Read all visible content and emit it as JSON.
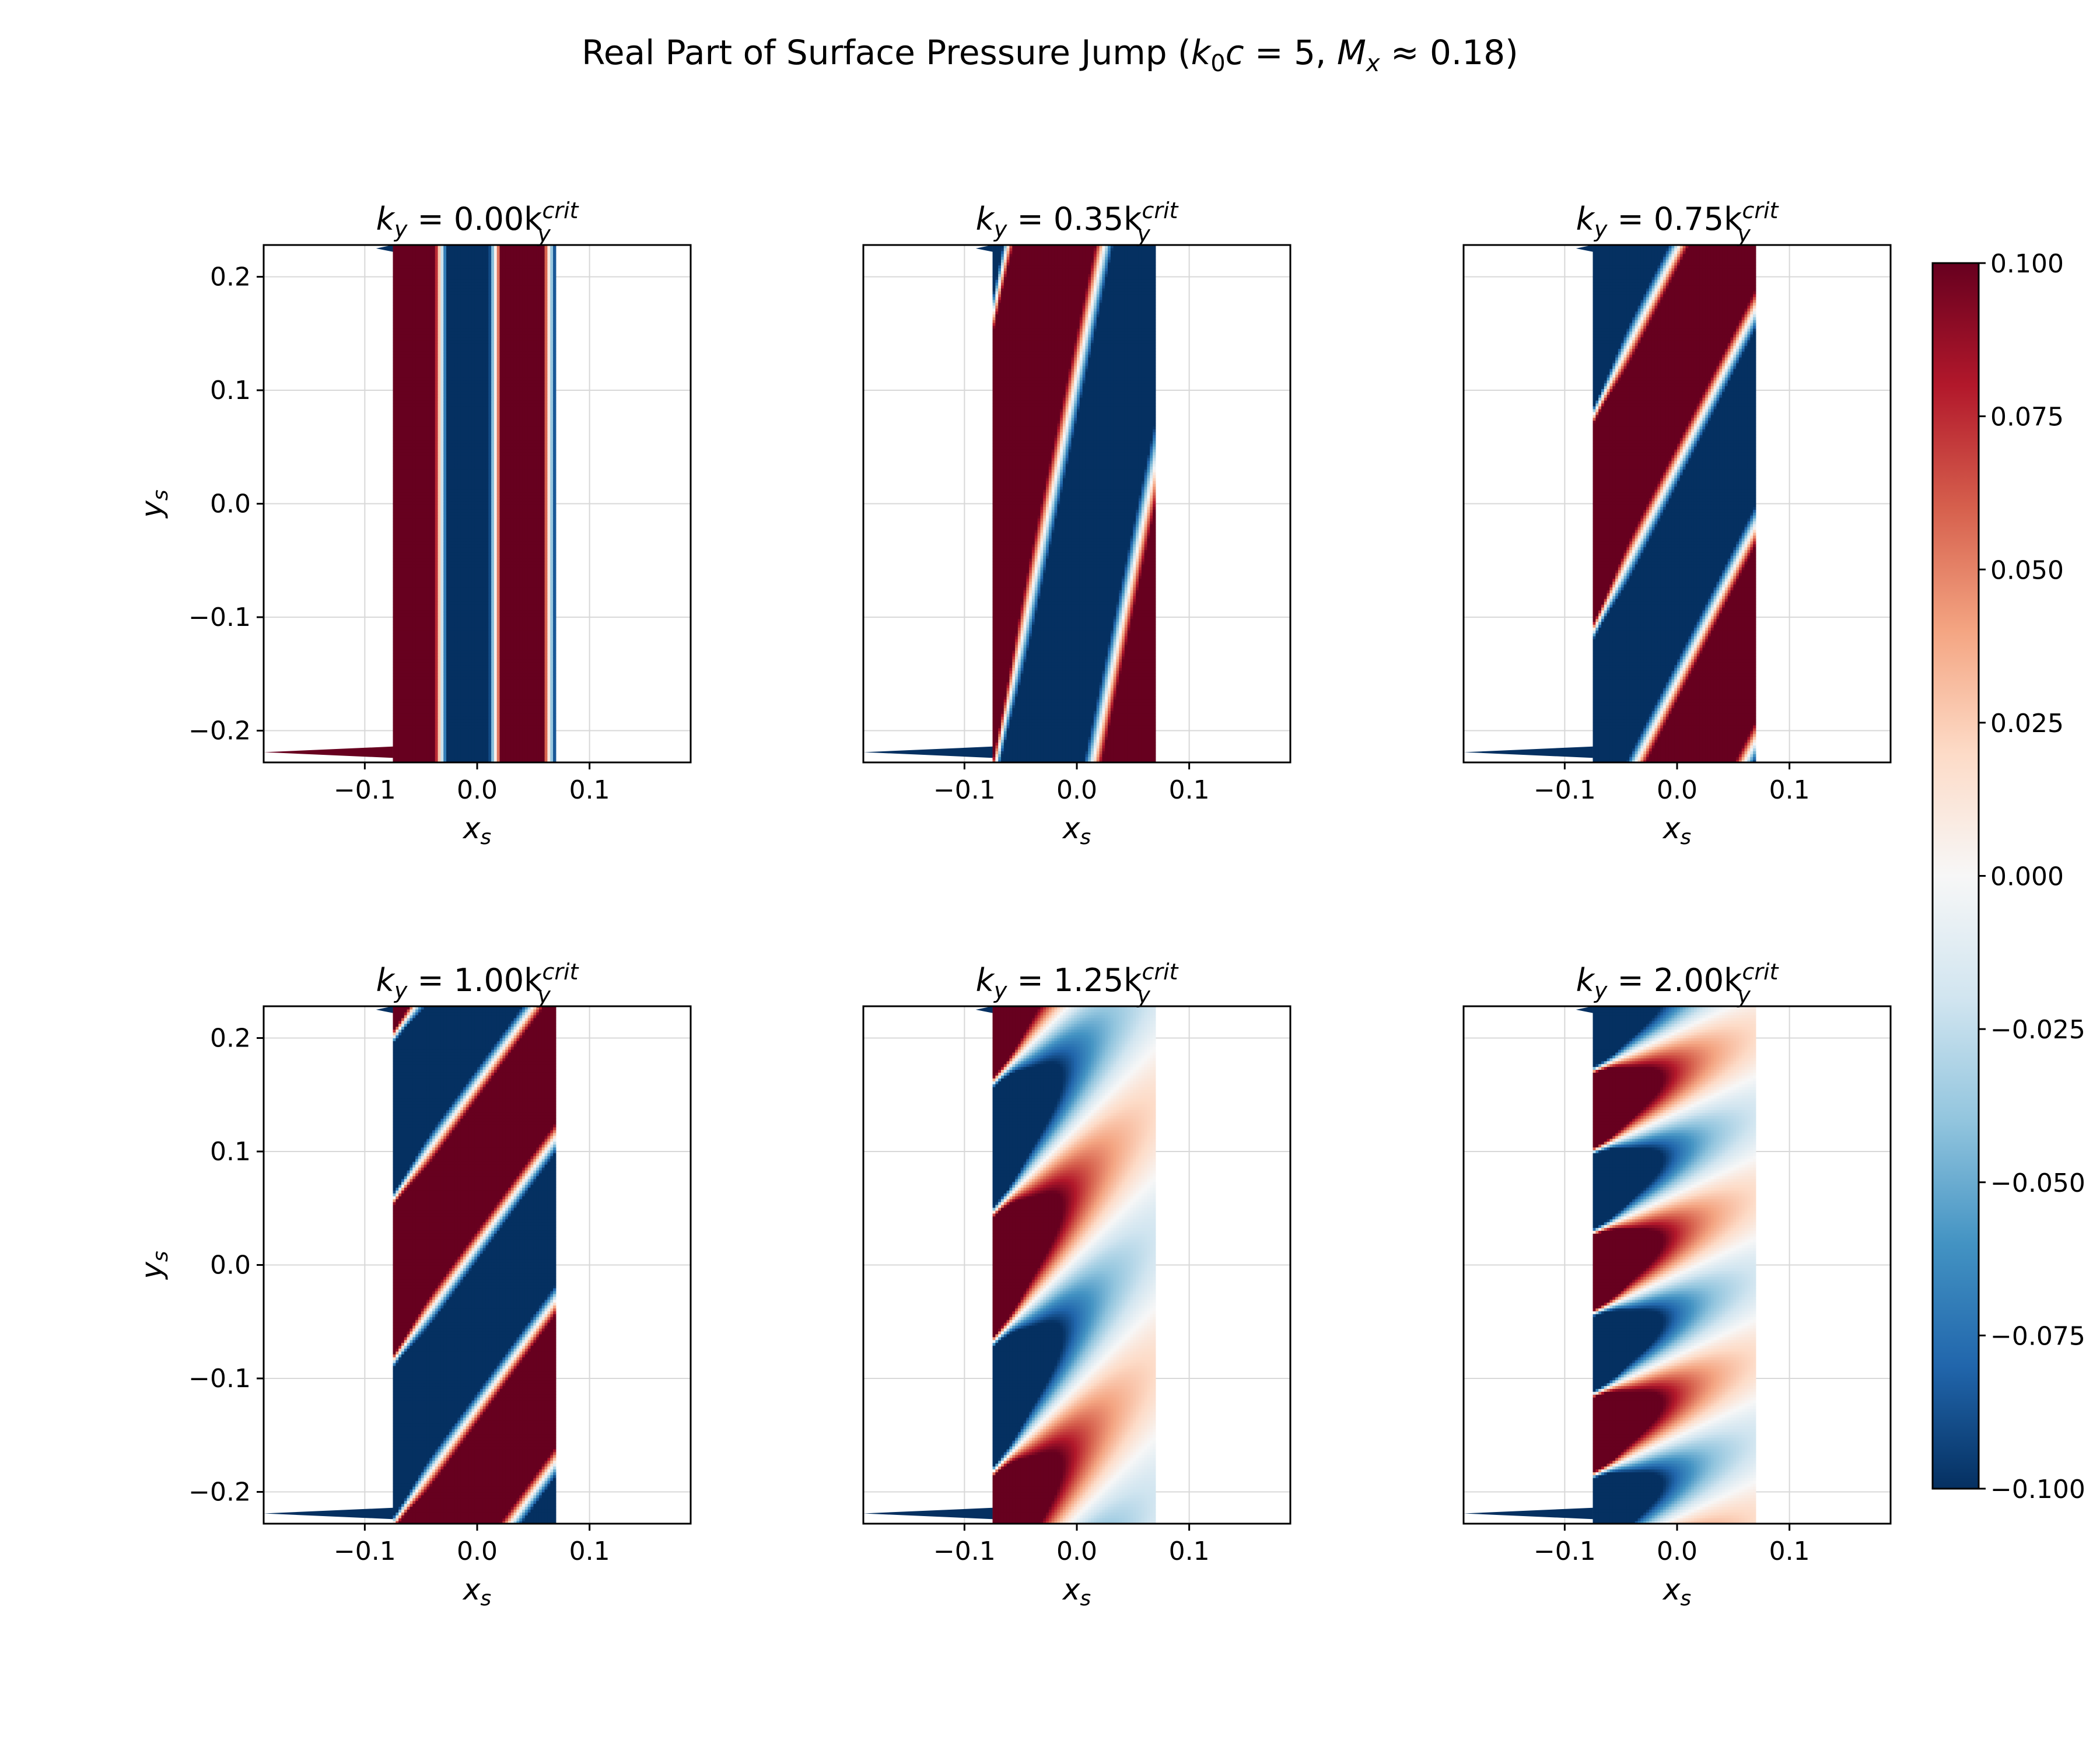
{
  "figure": {
    "title_main": "Real Part of Surface Pressure Jump (",
    "title_k": "k",
    "title_k_sub": "0",
    "title_c": "c",
    "title_eq5": " = 5, ",
    "title_M": "M",
    "title_M_sub": "x",
    "title_approx": " ≈ 0.18)"
  },
  "colorbar": {
    "vmin": -0.1,
    "vmax": 0.1,
    "ticks": [
      0.1,
      0.075,
      0.05,
      0.025,
      0.0,
      -0.025,
      -0.05,
      -0.075,
      -0.1
    ],
    "tick_labels": [
      "0.100",
      "0.075",
      "0.050",
      "0.025",
      "0.000",
      "−0.025",
      "−0.050",
      "−0.075",
      "−0.100"
    ],
    "colormap": "RdBu_r",
    "color_max": "#67001f",
    "color_mid": "#f7f7f7",
    "color_min": "#053061"
  },
  "chart_data": [
    {
      "type": "heatmap",
      "panel": "top-left",
      "title_prefix": "k",
      "title_sub": "y",
      "title_eq": " = 0.00k",
      "title_sup": "crit",
      "title_sub2": "y",
      "ky_ratio": 0.0,
      "xlim": [
        -0.19,
        0.19
      ],
      "ylim": [
        -0.228,
        0.228
      ],
      "x_ticks": [
        -0.1,
        0.0,
        0.1
      ],
      "x_tick_labels": [
        "−0.1",
        "0.0",
        "0.1"
      ],
      "y_ticks": [
        0.2,
        0.1,
        0.0,
        -0.1,
        -0.2
      ],
      "y_tick_labels": [
        "0.2",
        "0.1",
        "0.0",
        "−0.1",
        "−0.2"
      ],
      "xlabel": "x",
      "xlabel_sub": "s",
      "ylabel": "y",
      "ylabel_sub": "s",
      "grid": true
    },
    {
      "type": "heatmap",
      "panel": "top-center",
      "title_prefix": "k",
      "title_sub": "y",
      "title_eq": " = 0.35k",
      "title_sup": "crit",
      "title_sub2": "y",
      "ky_ratio": 0.35,
      "xlim": [
        -0.19,
        0.19
      ],
      "ylim": [
        -0.228,
        0.228
      ],
      "x_ticks": [
        -0.1,
        0.0,
        0.1
      ],
      "x_tick_labels": [
        "−0.1",
        "0.0",
        "0.1"
      ],
      "y_ticks": [],
      "y_tick_labels": [],
      "xlabel": "x",
      "xlabel_sub": "s",
      "ylabel": "",
      "ylabel_sub": "",
      "grid": true
    },
    {
      "type": "heatmap",
      "panel": "top-right",
      "title_prefix": "k",
      "title_sub": "y",
      "title_eq": " = 0.75k",
      "title_sup": "crit",
      "title_sub2": "y",
      "ky_ratio": 0.75,
      "xlim": [
        -0.19,
        0.19
      ],
      "ylim": [
        -0.228,
        0.228
      ],
      "x_ticks": [
        -0.1,
        0.0,
        0.1
      ],
      "x_tick_labels": [
        "−0.1",
        "0.0",
        "0.1"
      ],
      "y_ticks": [],
      "y_tick_labels": [],
      "xlabel": "x",
      "xlabel_sub": "s",
      "ylabel": "",
      "ylabel_sub": "",
      "grid": true
    },
    {
      "type": "heatmap",
      "panel": "bottom-left",
      "title_prefix": "k",
      "title_sub": "y",
      "title_eq": " = 1.00k",
      "title_sup": "crit",
      "title_sub2": "y",
      "ky_ratio": 1.0,
      "xlim": [
        -0.19,
        0.19
      ],
      "ylim": [
        -0.228,
        0.228
      ],
      "x_ticks": [
        -0.1,
        0.0,
        0.1
      ],
      "x_tick_labels": [
        "−0.1",
        "0.0",
        "0.1"
      ],
      "y_ticks": [
        0.2,
        0.1,
        0.0,
        -0.1,
        -0.2
      ],
      "y_tick_labels": [
        "0.2",
        "0.1",
        "0.0",
        "−0.1",
        "−0.2"
      ],
      "xlabel": "x",
      "xlabel_sub": "s",
      "ylabel": "y",
      "ylabel_sub": "s",
      "grid": true
    },
    {
      "type": "heatmap",
      "panel": "bottom-center",
      "title_prefix": "k",
      "title_sub": "y",
      "title_eq": " = 1.25k",
      "title_sup": "crit",
      "title_sub2": "y",
      "ky_ratio": 1.25,
      "xlim": [
        -0.19,
        0.19
      ],
      "ylim": [
        -0.228,
        0.228
      ],
      "x_ticks": [
        -0.1,
        0.0,
        0.1
      ],
      "x_tick_labels": [
        "−0.1",
        "0.0",
        "0.1"
      ],
      "y_ticks": [],
      "y_tick_labels": [],
      "xlabel": "x",
      "xlabel_sub": "s",
      "ylabel": "",
      "ylabel_sub": "",
      "grid": true
    },
    {
      "type": "heatmap",
      "panel": "bottom-right",
      "title_prefix": "k",
      "title_sub": "y",
      "title_eq": " = 2.00k",
      "title_sup": "crit",
      "title_sub2": "y",
      "ky_ratio": 2.0,
      "xlim": [
        -0.19,
        0.19
      ],
      "ylim": [
        -0.228,
        0.228
      ],
      "x_ticks": [
        -0.1,
        0.0,
        0.1
      ],
      "x_tick_labels": [
        "−0.1",
        "0.0",
        "0.1"
      ],
      "y_ticks": [],
      "y_tick_labels": [],
      "xlabel": "x",
      "xlabel_sub": "s",
      "ylabel": "",
      "ylabel_sub": "",
      "grid": true
    }
  ]
}
